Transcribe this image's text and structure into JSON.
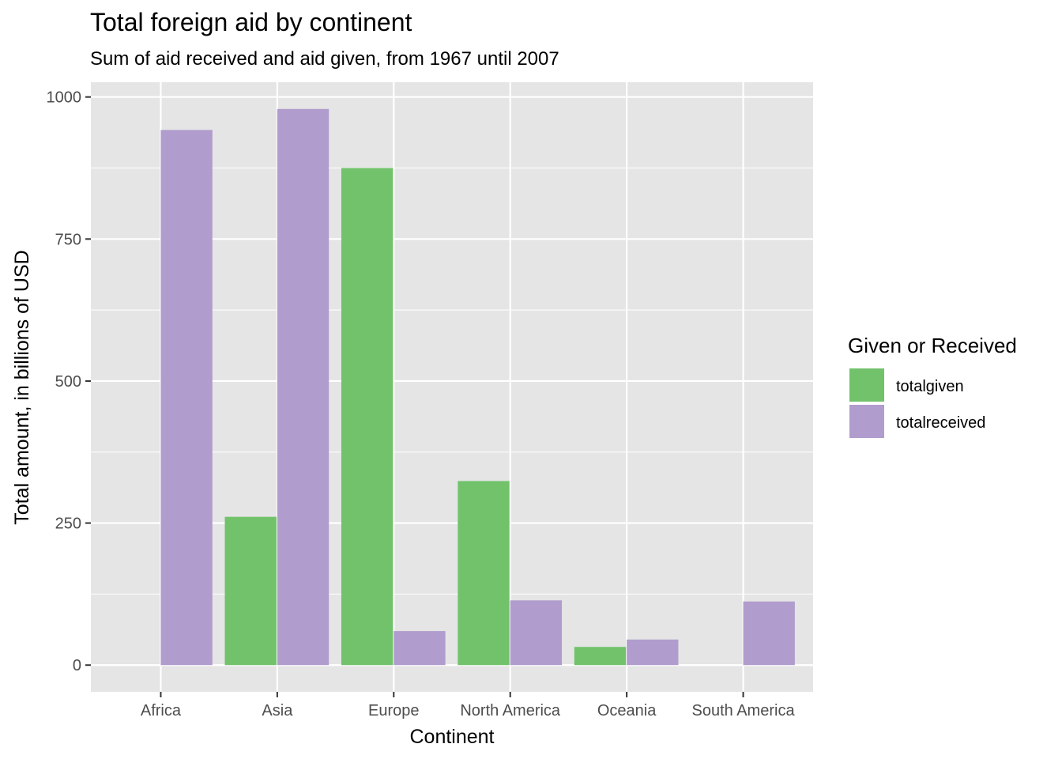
{
  "chart_data": {
    "type": "bar",
    "title": "Total foreign aid by continent",
    "subtitle": "Sum of aid received and aid given, from 1967 until 2007",
    "xlabel": "Continent",
    "ylabel": "Total amount, in billions of USD",
    "categories": [
      "Africa",
      "Asia",
      "Europe",
      "North America",
      "Oceania",
      "South America"
    ],
    "series": [
      {
        "name": "totalgiven",
        "color": "#71c26b",
        "values": [
          0,
          261,
          875,
          324,
          32,
          0
        ]
      },
      {
        "name": "totalreceived",
        "color": "#b09dcd",
        "values": [
          942,
          979,
          60,
          114,
          45,
          112
        ]
      }
    ],
    "ylim": [
      -47,
      1026
    ],
    "yticks": [
      0,
      250,
      500,
      750,
      1000
    ],
    "ytick_labels": [
      "0",
      "250",
      "500",
      "750",
      "1000"
    ],
    "grid": true,
    "legend": {
      "title": "Given or Received",
      "position": "right"
    },
    "colors": {
      "panel": "#e5e5e5",
      "grid": "#ffffff",
      "tick_text": "#4d4d4d"
    }
  }
}
